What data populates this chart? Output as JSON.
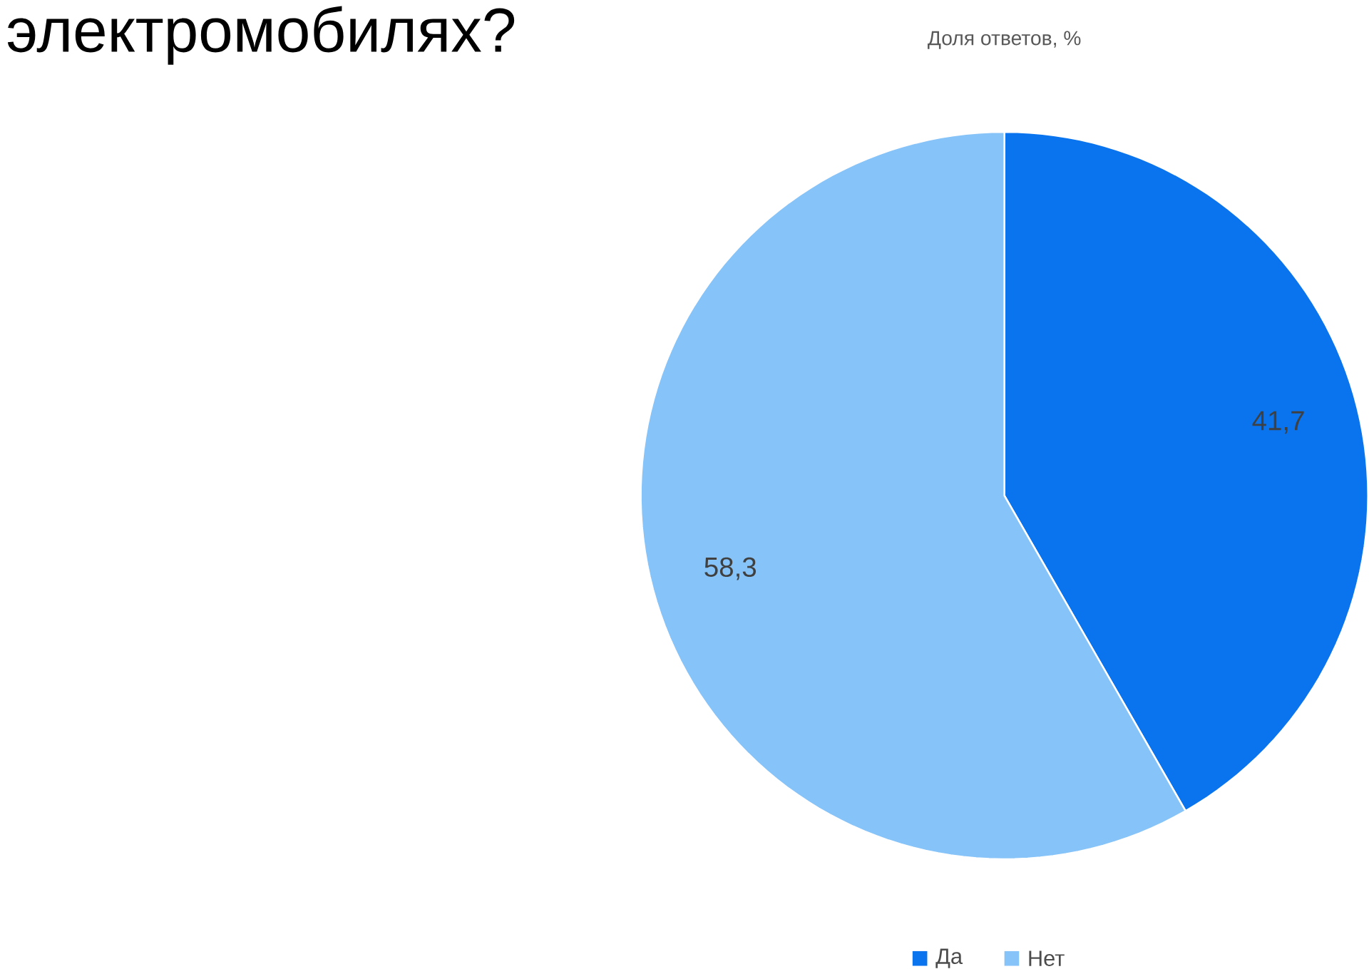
{
  "chart_data": {
    "type": "pie",
    "title": "электромобилях?",
    "subtitle": "Доля ответов, %",
    "categories": [
      "Да",
      "Нет"
    ],
    "values": [
      41.7,
      58.3
    ],
    "colors": [
      "#0a74ef",
      "#86c3f9"
    ],
    "value_labels": [
      "41,7",
      "58,3"
    ],
    "legend": "bottom"
  }
}
